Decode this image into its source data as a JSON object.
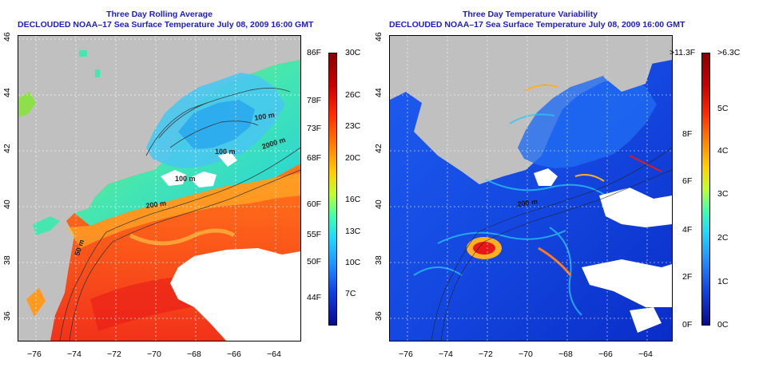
{
  "left_panel": {
    "title_line1": "Three Day Rolling Average",
    "title_line2": "DECLOUDED NOAA–17 Sea Surface Temperature July 08, 2009 16:00 GMT",
    "x_ticks": [
      "−76",
      "−74",
      "−72",
      "−70",
      "−68",
      "−66",
      "−64"
    ],
    "y_ticks": [
      "46",
      "44",
      "42",
      "40",
      "38",
      "36"
    ],
    "contour_labels": [
      "100 m",
      "100 m",
      "100 m",
      "2000 m",
      "200 m",
      "50 m"
    ],
    "colorbar": {
      "f_labels": [
        "86F",
        "78F",
        "73F",
        "68F",
        "60F",
        "55F",
        "50F",
        "44F"
      ],
      "c_labels": [
        "30C",
        "26C",
        "23C",
        "20C",
        "16C",
        "13C",
        "10C",
        "7C"
      ],
      "c_values": [
        30,
        26,
        23,
        20,
        16,
        13,
        10,
        7
      ],
      "min_c": 4,
      "max_c": 30
    }
  },
  "right_panel": {
    "title_line1": "Three Day Temperature Variability",
    "title_line2": "DECLOUDED NOAA–17 Sea Surface Temperature July 08, 2009 16:00 GMT",
    "x_ticks": [
      "−76",
      "−74",
      "−72",
      "−70",
      "−68",
      "−66",
      "−64"
    ],
    "y_ticks": [
      "46",
      "44",
      "42",
      "40",
      "38",
      "36"
    ],
    "contour_labels": [
      "200 m"
    ],
    "colorbar": {
      "f_labels": [
        ">11.3F",
        "8F",
        "6F",
        "4F",
        "2F",
        "0F"
      ],
      "f_values": [
        11.3,
        8,
        6,
        4,
        2,
        0
      ],
      "c_labels": [
        ">6.3C",
        "5C",
        "4C",
        "3C",
        "2C",
        "1C",
        "0C"
      ],
      "c_values": [
        6.3,
        5,
        4,
        3,
        2,
        1,
        0
      ],
      "min_c": 0,
      "max_c": 6.3
    }
  },
  "colors": {
    "land": "#c0c0c0",
    "title": "#1c1ccc",
    "cloud": "#ffffff"
  }
}
